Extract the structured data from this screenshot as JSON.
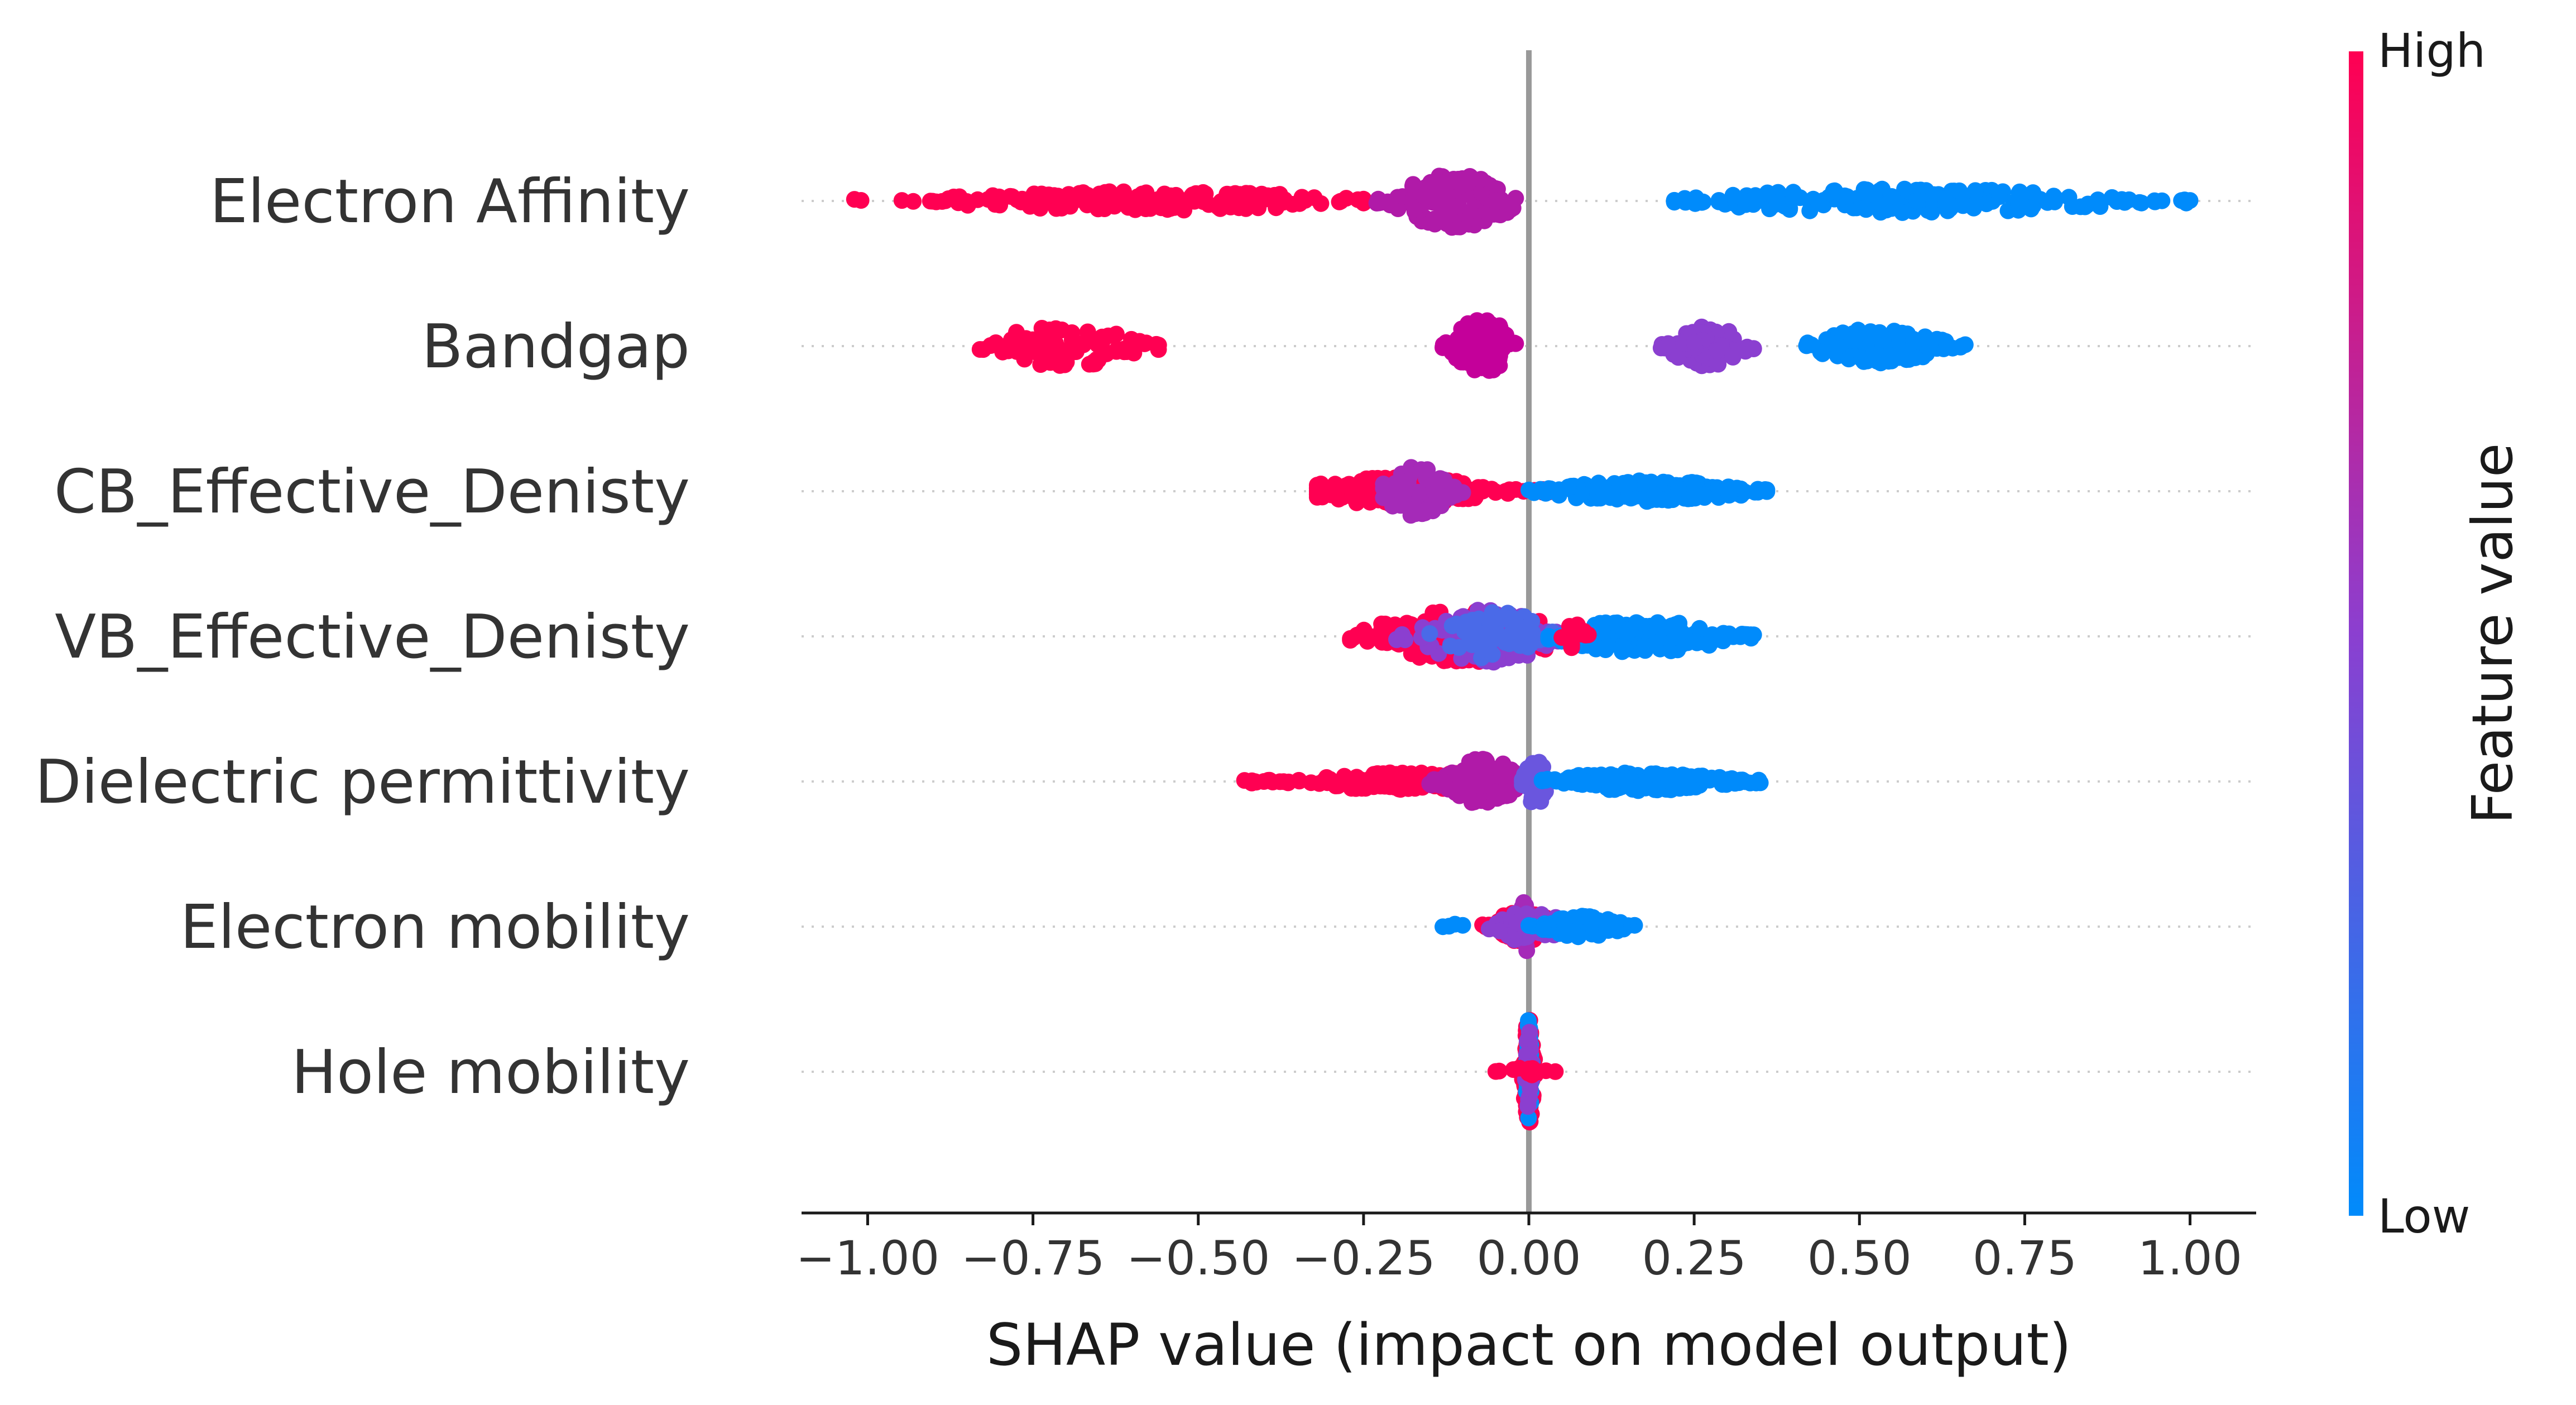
{
  "chart_data": {
    "type": "scatter",
    "subtype": "beeswarm",
    "xlabel": "SHAP value (impact on model output)",
    "xlim": [
      -1.1,
      1.1
    ],
    "xticks": [
      -1.0,
      -0.75,
      -0.5,
      -0.25,
      0.0,
      0.25,
      0.5,
      0.75,
      1.0
    ],
    "xtick_labels": [
      "−1.00",
      "−0.75",
      "−0.50",
      "−0.25",
      "0.00",
      "0.25",
      "0.50",
      "0.75",
      "1.00"
    ],
    "grid": false,
    "colorbar": {
      "title": "Feature value",
      "high_label": "High",
      "low_label": "Low",
      "high_color": "#ff0052",
      "mid_color": "#8b3fd0",
      "low_color": "#008bfb"
    },
    "features": [
      {
        "name": "Electron Affinity",
        "clusters": [
          {
            "range": [
              -1.02,
              -0.25
            ],
            "center": -0.58,
            "count": 190,
            "height": 0.14,
            "color": "#ff0052"
          },
          {
            "range": [
              -0.23,
              -0.02
            ],
            "center": -0.11,
            "count": 150,
            "height": 0.4,
            "color": "#b01aa8"
          },
          {
            "range": [
              0.22,
              1.0
            ],
            "center": 0.58,
            "count": 190,
            "height": 0.18,
            "color": "#008bfb"
          }
        ]
      },
      {
        "name": "Bandgap",
        "clusters": [
          {
            "range": [
              -0.83,
              -0.56
            ],
            "center": -0.7,
            "count": 90,
            "height": 0.3,
            "color": "#ff0052"
          },
          {
            "range": [
              -0.13,
              -0.02
            ],
            "center": -0.07,
            "count": 90,
            "height": 0.4,
            "color": "#c4009a"
          },
          {
            "range": [
              0.2,
              0.34
            ],
            "center": 0.27,
            "count": 80,
            "height": 0.3,
            "color": "#8b3fd0"
          },
          {
            "range": [
              0.42,
              0.66
            ],
            "center": 0.53,
            "count": 110,
            "height": 0.26,
            "color": "#008bfb"
          }
        ]
      },
      {
        "name": "CB_Effective_Denisty",
        "clusters": [
          {
            "range": [
              -0.32,
              0.04
            ],
            "center": -0.2,
            "count": 160,
            "height": 0.2,
            "color": "#ff0052"
          },
          {
            "range": [
              -0.22,
              -0.1
            ],
            "center": -0.17,
            "count": 70,
            "height": 0.4,
            "color": "#a52ab8"
          },
          {
            "range": [
              0.0,
              0.36
            ],
            "center": 0.18,
            "count": 170,
            "height": 0.16,
            "color": "#008bfb"
          }
        ]
      },
      {
        "name": "VB_Effective_Denisty",
        "clusters": [
          {
            "range": [
              -0.27,
              0.08
            ],
            "center": -0.1,
            "count": 160,
            "height": 0.4,
            "color": "#ff0052"
          },
          {
            "range": [
              -0.2,
              0.05
            ],
            "center": -0.07,
            "count": 110,
            "height": 0.4,
            "color": "#8b3fd0"
          },
          {
            "range": [
              -0.15,
              0.06
            ],
            "center": -0.05,
            "count": 60,
            "height": 0.36,
            "color": "#4a6ae8"
          },
          {
            "range": [
              0.03,
              0.34
            ],
            "center": 0.17,
            "count": 150,
            "height": 0.24,
            "color": "#008bfb"
          },
          {
            "range": [
              0.05,
              0.09
            ],
            "center": 0.07,
            "count": 15,
            "height": 0.2,
            "color": "#ff0052"
          }
        ]
      },
      {
        "name": "Dielectric permittivity",
        "clusters": [
          {
            "range": [
              -0.43,
              -0.05
            ],
            "center": -0.17,
            "count": 180,
            "height": 0.14,
            "color": "#ff0052"
          },
          {
            "range": [
              -0.15,
              -0.02
            ],
            "center": -0.07,
            "count": 100,
            "height": 0.34,
            "color": "#b01aa8"
          },
          {
            "range": [
              -0.01,
              0.03
            ],
            "center": 0.01,
            "count": 70,
            "height": 0.36,
            "color": "#6a56de"
          },
          {
            "range": [
              0.02,
              0.35
            ],
            "center": 0.17,
            "count": 170,
            "height": 0.14,
            "color": "#008bfb"
          }
        ]
      },
      {
        "name": "Electron mobility",
        "clusters": [
          {
            "range": [
              -0.07,
              0.05
            ],
            "center": -0.01,
            "count": 90,
            "height": 0.22,
            "color": "#ff0052"
          },
          {
            "range": [
              -0.01,
              0.01
            ],
            "center": -0.005,
            "count": 40,
            "height": 0.4,
            "color": "#a52ab8"
          },
          {
            "range": [
              -0.06,
              0.08
            ],
            "center": 0.0,
            "count": 50,
            "height": 0.22,
            "color": "#8b3fd0"
          },
          {
            "range": [
              0.0,
              0.16
            ],
            "center": 0.08,
            "count": 50,
            "height": 0.16,
            "color": "#008bfb"
          },
          {
            "range": [
              -0.13,
              -0.1
            ],
            "center": -0.11,
            "count": 4,
            "height": 0.08,
            "color": "#008bfb"
          }
        ]
      },
      {
        "name": "Hole mobility",
        "clusters": [
          {
            "range": [
              -0.01,
              0.01
            ],
            "center": 0.0,
            "count": 90,
            "height": 0.8,
            "color": "#ff0052"
          },
          {
            "range": [
              -0.005,
              0.005
            ],
            "center": 0.0,
            "count": 50,
            "height": 0.8,
            "color": "#008bfb"
          },
          {
            "range": [
              -0.005,
              0.005
            ],
            "center": 0.0,
            "count": 20,
            "height": 0.7,
            "color": "#8b3fd0"
          },
          {
            "range": [
              -0.05,
              0.04
            ],
            "center": 0.0,
            "count": 14,
            "height": 0.06,
            "color": "#ff0052"
          }
        ]
      }
    ]
  }
}
